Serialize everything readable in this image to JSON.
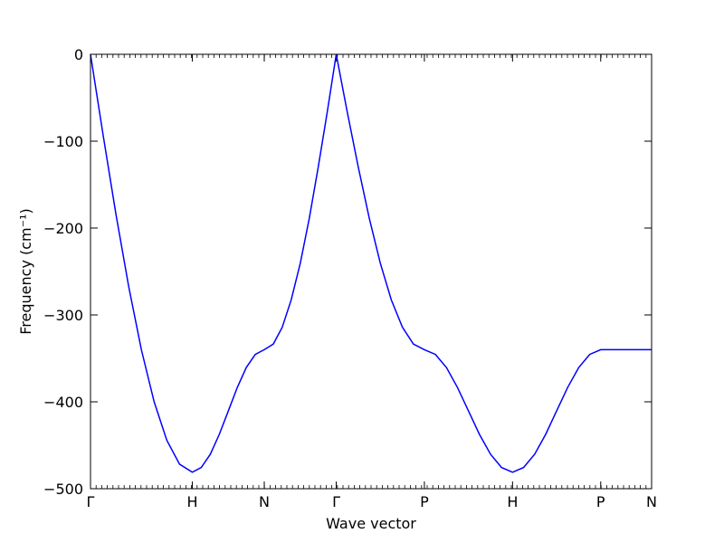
{
  "chart_data": {
    "type": "line",
    "xlabel": "Wave vector",
    "ylabel": "Frequency (cm⁻¹)",
    "x": [
      0,
      0.125,
      0.25,
      0.375,
      0.5,
      0.625,
      0.75,
      0.875,
      1,
      1.088,
      1.177,
      1.265,
      1.354,
      1.442,
      1.53,
      1.619,
      1.707,
      1.796,
      1.884,
      1.972,
      2.061,
      2.149,
      2.237,
      2.326,
      2.414,
      2.522,
      2.631,
      2.739,
      2.847,
      2.955,
      3.064,
      3.172,
      3.28,
      3.388,
      3.497,
      3.605,
      3.713,
      3.821,
      3.93,
      4.038,
      4.146,
      4.254,
      4.363,
      4.471,
      4.579,
      4.687,
      4.796,
      4.904,
      5.012,
      5.512
    ],
    "series": [
      {
        "color": "#0000ff",
        "values": [
          0,
          -93.8,
          -184.1,
          -267.2,
          -340.1,
          -399.9,
          -444.4,
          -471.8,
          -481,
          -475.6,
          -460.4,
          -437.5,
          -410.5,
          -383.5,
          -360.6,
          -345.4,
          -340,
          -333.5,
          -314,
          -282.5,
          -240.4,
          -189,
          -130,
          -66.3,
          0,
          -66.3,
          -130.1,
          -188.9,
          -240.4,
          -282.7,
          -314.1,
          -333.5,
          -340,
          -345.4,
          -360.6,
          -383.5,
          -410.5,
          -437.5,
          -460.4,
          -475.6,
          -481,
          -475.6,
          -460.4,
          -437.5,
          -410.5,
          -383.5,
          -360.6,
          -345.4,
          -340,
          -340
        ]
      }
    ],
    "xlim": [
      0,
      5.512
    ],
    "xticks": [
      {
        "value": 0,
        "label": "Γ"
      },
      {
        "value": 1,
        "label": "H"
      },
      {
        "value": 1.707,
        "label": "N"
      },
      {
        "value": 2.414,
        "label": "Γ"
      },
      {
        "value": 3.28,
        "label": "P"
      },
      {
        "value": 4.146,
        "label": "H"
      },
      {
        "value": 5.012,
        "label": "P"
      },
      {
        "value": 5.512,
        "label": "N"
      }
    ],
    "ylim": [
      -500,
      0
    ],
    "yticks": [
      {
        "value": -500,
        "label": "−500"
      },
      {
        "value": -400,
        "label": "−400"
      },
      {
        "value": -300,
        "label": "−300"
      },
      {
        "value": -200,
        "label": "−200"
      },
      {
        "value": -100,
        "label": "−100"
      },
      0
    ]
  }
}
